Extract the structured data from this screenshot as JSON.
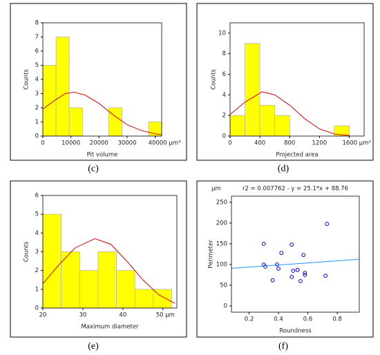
{
  "chart_data": [
    {
      "type": "histogram",
      "label": "(c)",
      "xlabel": "Pit volume",
      "ylabel": "Counts",
      "bins": [
        0,
        4700,
        9400,
        14100,
        18800,
        23500,
        28200,
        32900,
        37600,
        42300
      ],
      "values": [
        5,
        7,
        2,
        0,
        0,
        2,
        0,
        0,
        1
      ],
      "color": "#ffff00",
      "xlim": [
        0,
        42300
      ],
      "ylim": [
        0,
        8
      ],
      "xticks": [
        0,
        10000,
        20000,
        30000,
        {
          "value": 40000,
          "label": "40000 μm³"
        }
      ],
      "yticks": [
        0,
        1,
        2,
        3,
        4,
        5,
        6,
        7,
        8
      ],
      "fit": {
        "color": "#e00000",
        "x": [
          0,
          4000,
          8000,
          11000,
          15000,
          20000,
          25000,
          30000,
          35000,
          40000,
          42300
        ],
        "values": [
          1.9,
          2.5,
          3.0,
          3.1,
          2.9,
          2.3,
          1.5,
          0.8,
          0.4,
          0.15,
          0.1
        ]
      }
    },
    {
      "type": "histogram",
      "label": "(d)",
      "xlabel": "Projected area",
      "ylabel": "Counts",
      "bins": [
        0,
        200,
        400,
        600,
        800,
        1000,
        1200,
        1400,
        1600
      ],
      "values": [
        2,
        9,
        3,
        2,
        0,
        0,
        0,
        1
      ],
      "color": "#ffff00",
      "xlim": [
        0,
        1800
      ],
      "ylim": [
        0,
        11
      ],
      "xticks": [
        0,
        400,
        800,
        1200,
        {
          "value": 1600,
          "label": "1600 μm²"
        }
      ],
      "yticks": [
        0,
        2,
        4,
        6,
        8,
        10
      ],
      "fit": {
        "color": "#e00000",
        "x": [
          0,
          200,
          430,
          600,
          800,
          1000,
          1200,
          1400,
          1600
        ],
        "values": [
          2.1,
          3.3,
          4.3,
          4.0,
          3.0,
          1.7,
          0.7,
          0.2,
          0.05
        ]
      }
    },
    {
      "type": "histogram",
      "label": "(e)",
      "xlabel": "Maximum diameter",
      "ylabel": "Counts",
      "bins": [
        20,
        24.6,
        29.2,
        33.8,
        38.4,
        43,
        47.6,
        52.2
      ],
      "values": [
        5,
        3,
        2,
        3,
        2,
        1,
        1
      ],
      "color": "#ffff00",
      "xlim": [
        20,
        53.5
      ],
      "ylim": [
        0,
        6
      ],
      "xticks": [
        20,
        30,
        40,
        {
          "value": 50,
          "label": "50 μm"
        }
      ],
      "yticks": [
        0,
        1,
        2,
        3,
        4,
        5,
        6
      ],
      "fit": {
        "color": "#e00000",
        "x": [
          20,
          24,
          28,
          33,
          37,
          41,
          45,
          49,
          53
        ],
        "values": [
          1.3,
          2.3,
          3.2,
          3.7,
          3.4,
          2.5,
          1.5,
          0.7,
          0.25
        ]
      }
    },
    {
      "type": "scatter",
      "label": "(f)",
      "title": "r2 = 0.007762   -   y = 25.1*x + 88.76",
      "unit": "μm",
      "xlabel": "Roundness",
      "ylabel": "Perimeter",
      "color": "#0000dd",
      "x": [
        0.3,
        0.3,
        0.31,
        0.36,
        0.39,
        0.4,
        0.42,
        0.49,
        0.49,
        0.5,
        0.53,
        0.55,
        0.57,
        0.58,
        0.58,
        0.72,
        0.73
      ],
      "values": [
        150,
        100,
        95,
        62,
        100,
        90,
        128,
        148,
        70,
        85,
        87,
        60,
        123,
        80,
        75,
        73,
        198
      ],
      "xlim": [
        0.08,
        0.95
      ],
      "ylim": [
        -15,
        265
      ],
      "xticks": [
        0.2,
        0.4,
        0.6,
        0.8
      ],
      "yticks": [
        0,
        50,
        100,
        150,
        200,
        250
      ],
      "fit": {
        "color": "#1e90ff",
        "x": [
          0.08,
          0.95
        ],
        "values": [
          90.8,
          112.6
        ]
      }
    }
  ]
}
